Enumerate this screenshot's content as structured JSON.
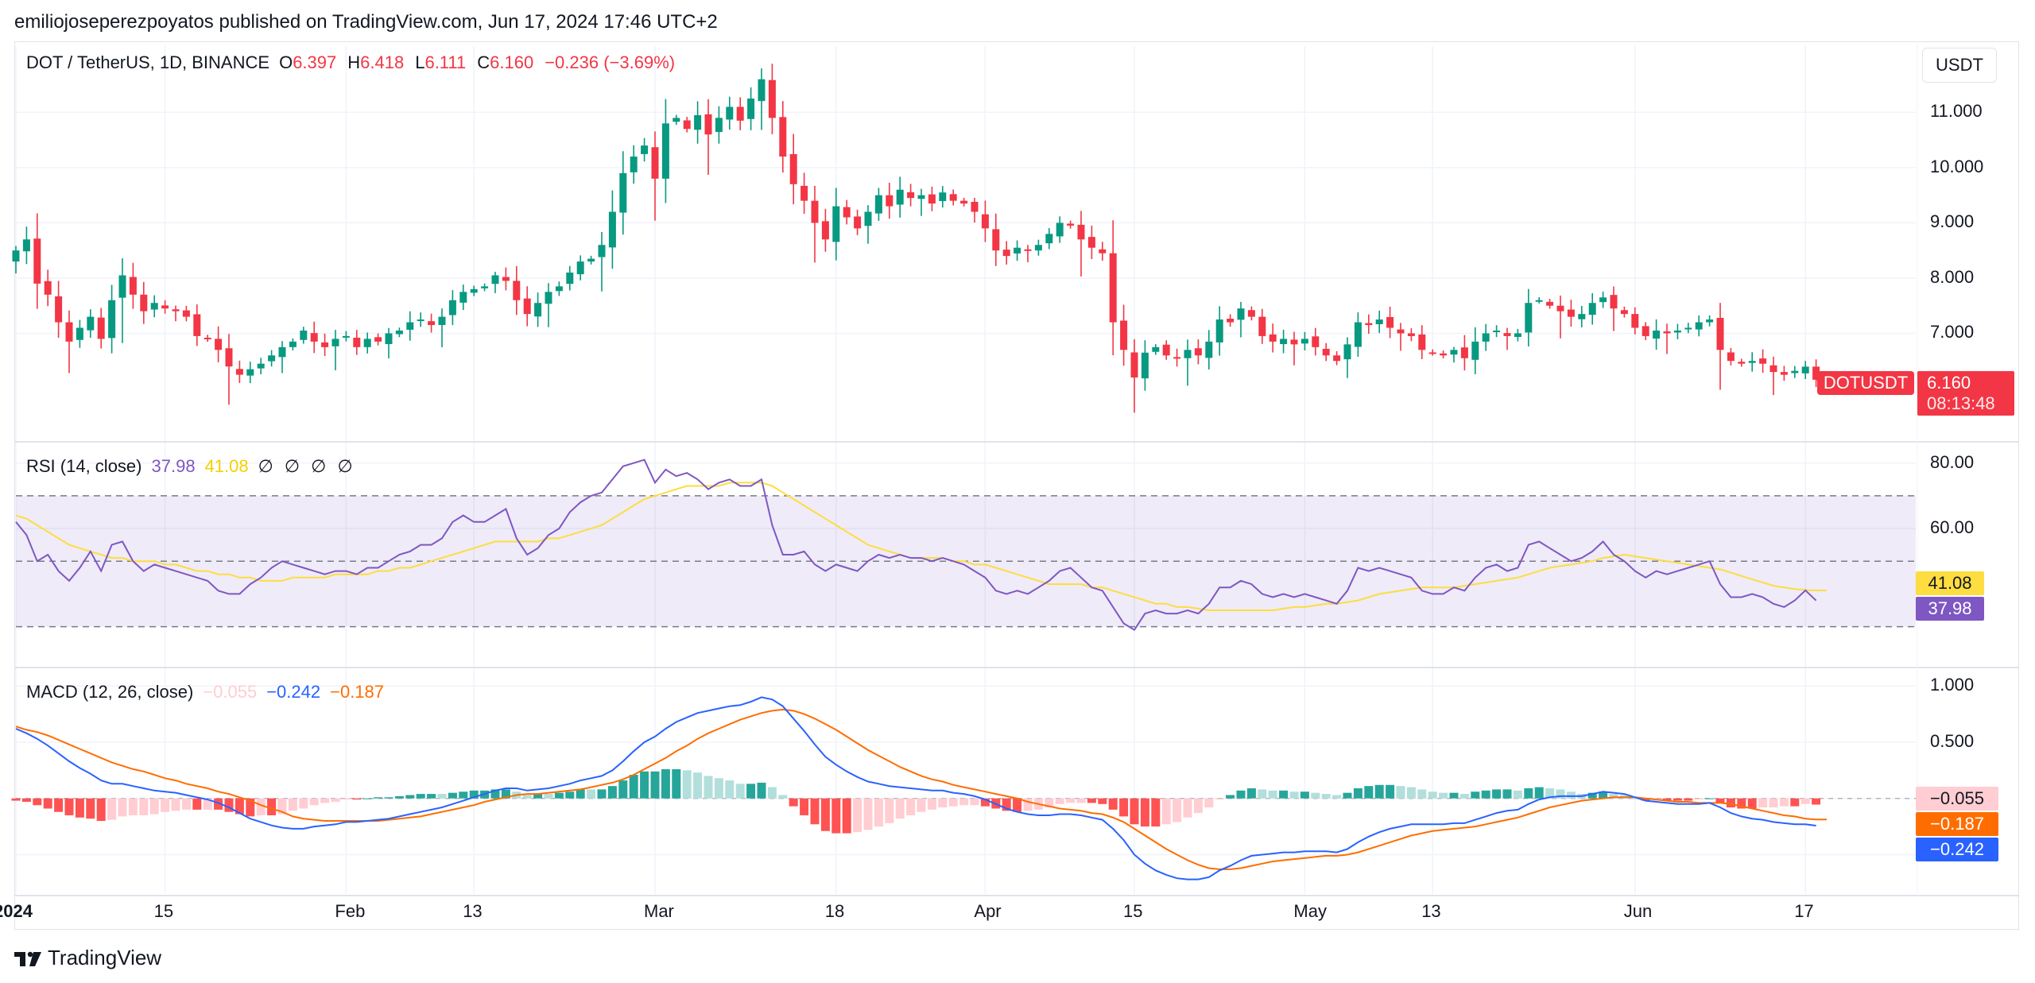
{
  "publisher_line": "emiliojoseperezpoyatos published on TradingView.com, Jun 17, 2024 17:46 UTC+2",
  "currency_button": "USDT",
  "footer_brand": "TradingView",
  "main_legend": {
    "symbol": "DOT / TetherUS, 1D, BINANCE",
    "o_label": "O",
    "o_value": "6.397",
    "h_label": "H",
    "h_value": "6.418",
    "l_label": "L",
    "l_value": "6.111",
    "c_label": "C",
    "c_value": "6.160",
    "change": "−0.236 (−3.69%)"
  },
  "rsi_legend": {
    "title": "RSI (14, close)",
    "rsi_value": "37.98",
    "ma_value": "41.08",
    "empties": "∅ ∅ ∅ ∅"
  },
  "macd_legend": {
    "title": "MACD (12, 26, close)",
    "hist_value": "−0.055",
    "macd_value": "−0.242",
    "signal_value": "−0.187"
  },
  "last_price": {
    "symbol": "DOTUSDT",
    "price": "6.160",
    "countdown": "08:13:48"
  },
  "colors": {
    "up": "#089981",
    "down": "#f23645",
    "rsi": "#7e57c2",
    "rsi_ma": "#fddd3f",
    "macd": "#2962ff",
    "signal": "#ff6d00",
    "hist_up_strong": "#26a69a",
    "hist_up_weak": "#b2dfdb",
    "hist_down_strong": "#ff5252",
    "hist_down_weak": "#ffcdd2"
  },
  "chart_data": {
    "type": "candlestick",
    "price_axis": {
      "ticks": [
        11,
        10,
        9,
        8,
        7
      ],
      "tick_labels": [
        "11.000",
        "10.000",
        "9.000",
        "8.000",
        "7.000"
      ],
      "range": [
        5.05,
        12.2
      ]
    },
    "rsi_axis": {
      "tick_labels": [
        "80.00",
        "60.00"
      ],
      "ticks": [
        80,
        60
      ],
      "bands": [
        70,
        50,
        30
      ],
      "range": [
        18,
        86
      ]
    },
    "macd_axis": {
      "tick_labels": [
        "1.000",
        "0.500"
      ],
      "ticks": [
        1.0,
        0.5
      ],
      "range": [
        -0.85,
        1.15
      ]
    },
    "time_axis": [
      {
        "label": "2024",
        "index": 0,
        "bold": true
      },
      {
        "label": "15",
        "index": 14
      },
      {
        "label": "Feb",
        "index": 31
      },
      {
        "label": "13",
        "index": 43
      },
      {
        "label": "Mar",
        "index": 60
      },
      {
        "label": "18",
        "index": 77
      },
      {
        "label": "Apr",
        "index": 91
      },
      {
        "label": "15",
        "index": 105
      },
      {
        "label": "May",
        "index": 121
      },
      {
        "label": "13",
        "index": 133
      },
      {
        "label": "Jun",
        "index": 152
      },
      {
        "label": "17",
        "index": 168
      }
    ],
    "close": [
      8.5,
      8.7,
      7.9,
      7.7,
      7.2,
      6.85,
      7.1,
      7.3,
      6.9,
      7.6,
      8.05,
      7.7,
      7.4,
      7.55,
      7.45,
      7.4,
      7.3,
      6.95,
      6.9,
      6.7,
      6.4,
      6.25,
      6.35,
      6.45,
      6.6,
      6.75,
      6.85,
      7.05,
      6.85,
      6.75,
      6.9,
      6.95,
      6.75,
      6.9,
      6.85,
      7.0,
      7.05,
      7.2,
      7.25,
      7.15,
      7.3,
      7.6,
      7.75,
      7.8,
      7.85,
      8.05,
      7.95,
      7.6,
      7.35,
      7.55,
      7.75,
      7.85,
      8.1,
      8.3,
      8.35,
      8.6,
      9.2,
      9.9,
      10.2,
      10.4,
      9.8,
      10.8,
      10.9,
      10.7,
      10.95,
      10.6,
      10.9,
      11.1,
      10.85,
      11.25,
      11.6,
      10.9,
      10.2,
      9.7,
      9.4,
      9.0,
      8.7,
      9.3,
      9.1,
      8.9,
      9.2,
      9.5,
      9.3,
      9.6,
      9.45,
      9.5,
      9.35,
      9.55,
      9.4,
      9.35,
      9.2,
      8.9,
      8.5,
      8.4,
      8.55,
      8.5,
      8.6,
      8.8,
      9.0,
      8.95,
      8.7,
      8.55,
      8.45,
      7.2,
      6.7,
      6.2,
      6.65,
      6.75,
      6.6,
      6.55,
      6.7,
      6.6,
      6.85,
      7.25,
      7.2,
      7.45,
      7.3,
      6.95,
      6.85,
      6.9,
      6.8,
      6.9,
      6.75,
      6.6,
      6.5,
      6.8,
      7.2,
      7.15,
      7.25,
      7.1,
      7.0,
      6.95,
      6.7,
      6.65,
      6.6,
      6.7,
      6.55,
      6.85,
      7.0,
      7.05,
      6.95,
      7.0,
      7.55,
      7.6,
      7.5,
      7.4,
      7.3,
      7.35,
      7.55,
      7.65,
      7.45,
      7.35,
      7.1,
      6.95,
      7.05,
      7.0,
      7.05,
      7.1,
      7.2,
      7.25,
      6.7,
      6.5,
      6.45,
      6.5,
      6.45,
      6.3,
      6.25,
      6.32,
      6.397,
      6.16
    ],
    "rsi": [
      62,
      58,
      50,
      52,
      47,
      44,
      48,
      53,
      47,
      55,
      56,
      50,
      47,
      49,
      48,
      47,
      46,
      45,
      44,
      41,
      40,
      40,
      43,
      45,
      48,
      50,
      49,
      48,
      47,
      46,
      47,
      47,
      46,
      48,
      48,
      50,
      52,
      53,
      55,
      55,
      57,
      62,
      64,
      62,
      62,
      64,
      66,
      57,
      52,
      54,
      58,
      60,
      65,
      68,
      70,
      71,
      75,
      79,
      80,
      81,
      74,
      78,
      76,
      77,
      75,
      72,
      74,
      75,
      73,
      73,
      75,
      61,
      52,
      52,
      53,
      49,
      47,
      49,
      48,
      47,
      50,
      52,
      51,
      52,
      51,
      51,
      50,
      51,
      50,
      49,
      47,
      45,
      41,
      40,
      41,
      40,
      42,
      44,
      47,
      48,
      45,
      42,
      41,
      36,
      31,
      29,
      34,
      35,
      34,
      34,
      35,
      34,
      37,
      42,
      42,
      44,
      43,
      40,
      39,
      40,
      39,
      40,
      39,
      38,
      37,
      41,
      48,
      47,
      48,
      47,
      46,
      45,
      41,
      40,
      40,
      42,
      41,
      45,
      48,
      49,
      47,
      48,
      55,
      56,
      54,
      52,
      50,
      51,
      53,
      56,
      52,
      50,
      47,
      45,
      47,
      46,
      47,
      48,
      49,
      50,
      43,
      39,
      39,
      40,
      39,
      37,
      36,
      38,
      41.1,
      37.98
    ],
    "rsi_ma": [
      64,
      63,
      61,
      59,
      57,
      55,
      54,
      53,
      52,
      51,
      51,
      50,
      50,
      50,
      49,
      49,
      48,
      47,
      47,
      46,
      46,
      45,
      45,
      44,
      44,
      44,
      45,
      45,
      45,
      45,
      46,
      46,
      46,
      46,
      47,
      47,
      48,
      48,
      49,
      50,
      51,
      52,
      53,
      54,
      55,
      56,
      56,
      56,
      56,
      56,
      57,
      57,
      58,
      59,
      60,
      61,
      63,
      65,
      67,
      69,
      70,
      71,
      72,
      73,
      73,
      73,
      73,
      74,
      74,
      74,
      74,
      73,
      71,
      69,
      67,
      65,
      63,
      61,
      59,
      57,
      55,
      54,
      53,
      52,
      51,
      51,
      51,
      51,
      50,
      50,
      49,
      49,
      48,
      47,
      46,
      45,
      44,
      43,
      43,
      43,
      43,
      42,
      42,
      41,
      40,
      39,
      38,
      37,
      37,
      36,
      36,
      35.5,
      35,
      35,
      35,
      35,
      35,
      35,
      35,
      35.5,
      36,
      36,
      36.5,
      37,
      37,
      37.5,
      38,
      39,
      40,
      40.5,
      41,
      41.5,
      42,
      42,
      42,
      42,
      42.5,
      43,
      43.5,
      44,
      44.5,
      45,
      46,
      47,
      48,
      48.5,
      49,
      49.5,
      50,
      51,
      51.5,
      52,
      51.5,
      51,
      50.5,
      50,
      49.5,
      49,
      48.5,
      48,
      47.5,
      46.5,
      45.5,
      44.5,
      43.5,
      42.5,
      42,
      41.5,
      41.2,
      41.08,
      41.08
    ],
    "macd": [
      0.62,
      0.58,
      0.53,
      0.47,
      0.4,
      0.33,
      0.27,
      0.22,
      0.16,
      0.13,
      0.13,
      0.11,
      0.09,
      0.07,
      0.06,
      0.05,
      0.03,
      0.01,
      -0.01,
      -0.04,
      -0.08,
      -0.13,
      -0.18,
      -0.21,
      -0.24,
      -0.26,
      -0.27,
      -0.27,
      -0.25,
      -0.24,
      -0.23,
      -0.21,
      -0.21,
      -0.2,
      -0.19,
      -0.18,
      -0.16,
      -0.14,
      -0.12,
      -0.1,
      -0.08,
      -0.05,
      -0.02,
      0.01,
      0.04,
      0.07,
      0.09,
      0.09,
      0.07,
      0.08,
      0.09,
      0.11,
      0.13,
      0.16,
      0.18,
      0.2,
      0.25,
      0.33,
      0.42,
      0.5,
      0.55,
      0.62,
      0.68,
      0.72,
      0.76,
      0.78,
      0.8,
      0.82,
      0.83,
      0.86,
      0.9,
      0.88,
      0.82,
      0.71,
      0.6,
      0.48,
      0.37,
      0.3,
      0.24,
      0.19,
      0.15,
      0.13,
      0.11,
      0.1,
      0.09,
      0.08,
      0.07,
      0.07,
      0.05,
      0.04,
      0.02,
      -0.01,
      -0.05,
      -0.09,
      -0.12,
      -0.14,
      -0.15,
      -0.15,
      -0.14,
      -0.14,
      -0.15,
      -0.17,
      -0.19,
      -0.27,
      -0.37,
      -0.5,
      -0.58,
      -0.64,
      -0.68,
      -0.71,
      -0.72,
      -0.72,
      -0.7,
      -0.64,
      -0.6,
      -0.55,
      -0.51,
      -0.5,
      -0.49,
      -0.48,
      -0.48,
      -0.47,
      -0.47,
      -0.47,
      -0.48,
      -0.45,
      -0.39,
      -0.34,
      -0.3,
      -0.27,
      -0.25,
      -0.23,
      -0.23,
      -0.23,
      -0.23,
      -0.22,
      -0.22,
      -0.19,
      -0.16,
      -0.13,
      -0.11,
      -0.1,
      -0.05,
      -0.01,
      0.01,
      0.02,
      0.02,
      0.02,
      0.04,
      0.06,
      0.05,
      0.04,
      0.01,
      -0.02,
      -0.03,
      -0.04,
      -0.05,
      -0.05,
      -0.05,
      -0.04,
      -0.08,
      -0.13,
      -0.16,
      -0.18,
      -0.19,
      -0.21,
      -0.22,
      -0.23,
      -0.23,
      -0.242
    ],
    "signal": [
      0.64,
      0.61,
      0.59,
      0.56,
      0.52,
      0.48,
      0.44,
      0.4,
      0.36,
      0.32,
      0.29,
      0.26,
      0.24,
      0.21,
      0.18,
      0.16,
      0.13,
      0.11,
      0.09,
      0.06,
      0.04,
      0.01,
      -0.02,
      -0.06,
      -0.09,
      -0.12,
      -0.16,
      -0.18,
      -0.19,
      -0.2,
      -0.2,
      -0.2,
      -0.2,
      -0.2,
      -0.2,
      -0.19,
      -0.18,
      -0.17,
      -0.16,
      -0.14,
      -0.12,
      -0.1,
      -0.08,
      -0.06,
      -0.03,
      -0.01,
      0.01,
      0.03,
      0.04,
      0.04,
      0.05,
      0.06,
      0.07,
      0.08,
      0.1,
      0.12,
      0.14,
      0.17,
      0.21,
      0.26,
      0.31,
      0.36,
      0.42,
      0.47,
      0.53,
      0.58,
      0.62,
      0.66,
      0.7,
      0.73,
      0.76,
      0.78,
      0.79,
      0.78,
      0.75,
      0.71,
      0.66,
      0.61,
      0.55,
      0.49,
      0.43,
      0.38,
      0.33,
      0.28,
      0.24,
      0.2,
      0.17,
      0.15,
      0.12,
      0.1,
      0.08,
      0.06,
      0.04,
      0.02,
      0.0,
      -0.03,
      -0.05,
      -0.07,
      -0.09,
      -0.1,
      -0.11,
      -0.13,
      -0.14,
      -0.17,
      -0.21,
      -0.27,
      -0.33,
      -0.39,
      -0.45,
      -0.5,
      -0.55,
      -0.59,
      -0.62,
      -0.63,
      -0.63,
      -0.62,
      -0.6,
      -0.58,
      -0.56,
      -0.55,
      -0.54,
      -0.53,
      -0.52,
      -0.51,
      -0.51,
      -0.5,
      -0.48,
      -0.45,
      -0.42,
      -0.39,
      -0.36,
      -0.33,
      -0.31,
      -0.29,
      -0.28,
      -0.27,
      -0.26,
      -0.25,
      -0.23,
      -0.21,
      -0.19,
      -0.17,
      -0.14,
      -0.11,
      -0.08,
      -0.06,
      -0.04,
      -0.02,
      -0.01,
      0.0,
      0.01,
      0.01,
      0.01,
      0.0,
      -0.01,
      -0.02,
      -0.03,
      -0.03,
      -0.04,
      -0.04,
      -0.04,
      -0.05,
      -0.07,
      -0.09,
      -0.11,
      -0.13,
      -0.15,
      -0.16,
      -0.18,
      -0.187,
      -0.187
    ]
  }
}
